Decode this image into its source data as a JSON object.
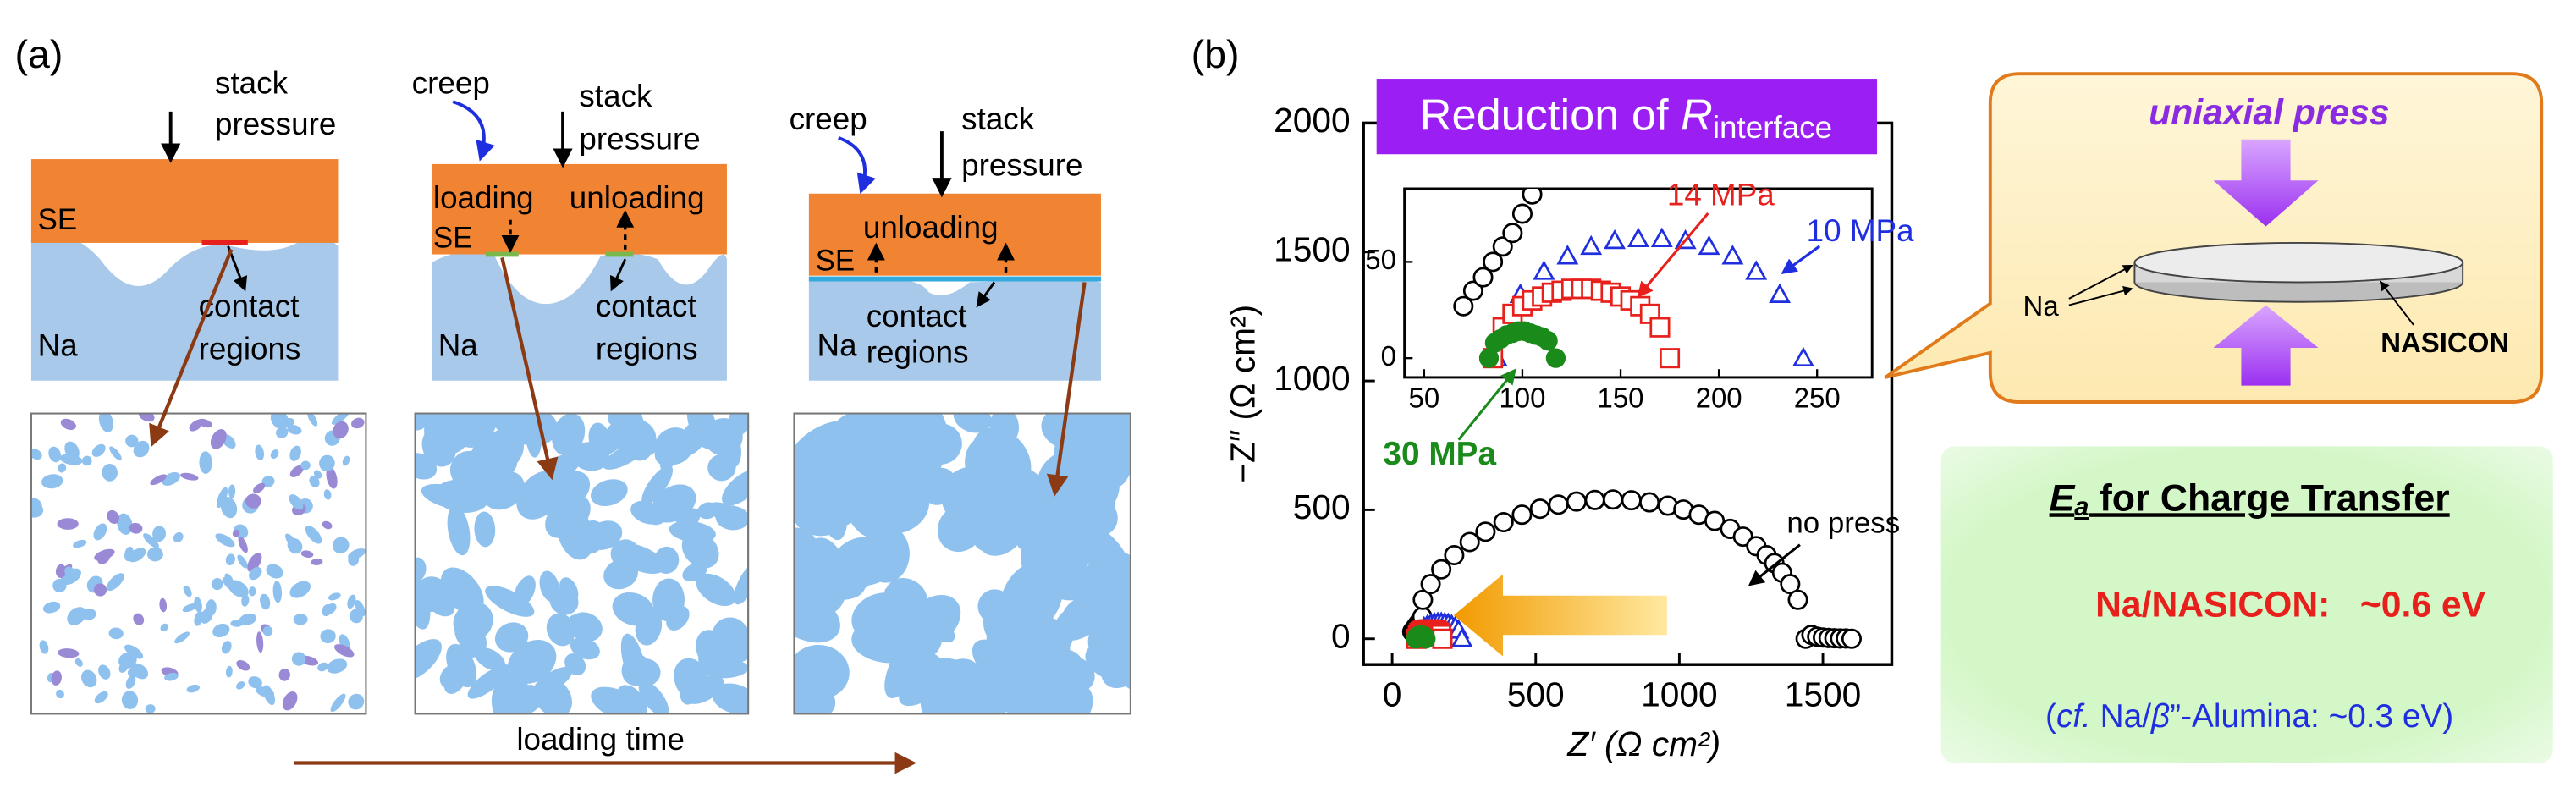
{
  "panel_a": {
    "label": "(a)",
    "steps": [
      {
        "pressure": [
          "stack",
          "pressure"
        ],
        "se": "SE",
        "na": "Na",
        "regions": [
          "contact",
          "regions"
        ]
      },
      {
        "creep": "creep",
        "pressure": [
          "stack",
          "pressure"
        ],
        "loading": "loading",
        "unloading": "unloading",
        "se": "SE",
        "na": "Na",
        "regions": [
          "contact",
          "regions"
        ]
      },
      {
        "creep": "creep",
        "pressure": [
          "stack",
          "pressure"
        ],
        "unloading": "unloading",
        "se": "SE",
        "na": "Na",
        "regions": [
          "contact",
          "regions"
        ]
      }
    ],
    "time_label": "loading time"
  },
  "panel_b_label": "(b)",
  "chart_data": {
    "type": "scatter",
    "title": "Reduction of ",
    "title_symbol": "R",
    "title_subscript": "interface",
    "x_label": "Z′ (Ω cm²)",
    "y_label": "−Z″ (Ω cm²)",
    "xlim": [
      -100,
      1740
    ],
    "ylim": [
      -100,
      2000
    ],
    "xticks": [
      0,
      500,
      1000,
      1500
    ],
    "yticks": [
      0,
      500,
      1000,
      1500,
      2000
    ],
    "inset": {
      "xlim": [
        40,
        278
      ],
      "ylim": [
        -10,
        88
      ],
      "xticks": [
        50,
        100,
        150,
        200,
        250
      ],
      "yticks": [
        0,
        50
      ]
    },
    "series": [
      {
        "name": "no press",
        "color": "#000000",
        "marker": "circle",
        "x": [
          70,
          75,
          80,
          85,
          90,
          95,
          100,
          105,
          107,
          134,
          171,
          216,
          270,
          325,
          388,
          452,
          515,
          579,
          642,
          706,
          769,
          833,
          896,
          960,
          1014,
          1068,
          1123,
          1177,
          1222,
          1268,
          1304,
          1331,
          1358,
          1386,
          1413,
          1440,
          1460,
          1480,
          1500,
          1520,
          1540,
          1560,
          1580,
          1600
        ],
        "values": [
          27,
          35,
          42,
          50,
          58,
          65,
          75,
          85,
          151,
          212,
          269,
          324,
          375,
          415,
          452,
          481,
          504,
          520,
          532,
          538,
          540,
          537,
          529,
          516,
          501,
          481,
          457,
          426,
          396,
          359,
          324,
          293,
          256,
          212,
          151,
          0,
          15,
          8,
          5,
          3,
          2,
          1,
          1,
          0
        ]
      },
      {
        "name": "10 MPa",
        "color": "#1f2fe0",
        "marker": "triangle",
        "x": [
          87,
          99,
          111,
          123,
          135,
          147,
          159,
          171,
          183,
          195,
          207,
          219,
          231,
          243
        ],
        "values": [
          0,
          33,
          45,
          53,
          58,
          61,
          62,
          62,
          61,
          58,
          53,
          45,
          33,
          0
        ]
      },
      {
        "name": "14 MPa",
        "color": "#e8201c",
        "marker": "square",
        "x": [
          85,
          90,
          95,
          100,
          105,
          110,
          115,
          120,
          125,
          130,
          135,
          140,
          145,
          150,
          155,
          160,
          165,
          170,
          175
        ],
        "values": [
          0,
          16,
          23,
          27,
          30,
          32,
          34,
          35,
          36,
          36,
          36,
          35,
          34,
          32,
          30,
          27,
          23,
          16,
          0
        ]
      },
      {
        "name": "30 MPa",
        "color": "#1a8a1a",
        "marker": "filled-circle",
        "x": [
          83,
          86,
          89,
          92,
          95,
          98,
          101,
          104,
          107,
          110,
          113,
          117
        ],
        "values": [
          0,
          8,
          10,
          12,
          13,
          14,
          14,
          13,
          12,
          11,
          9,
          0
        ]
      }
    ]
  },
  "callout": {
    "title": "uniaxial press",
    "na": "Na",
    "nasicon": "NASICON"
  },
  "ea_box": {
    "title_symbol": "E",
    "title_subscript": "a",
    "title_rest": " for Charge Transfer",
    "main": "Na/NASICON:   ~0.6 eV",
    "note_parts": [
      "(",
      "cf.",
      " Na/",
      "β",
      "”-Alumina: ~0.3 eV)"
    ]
  }
}
